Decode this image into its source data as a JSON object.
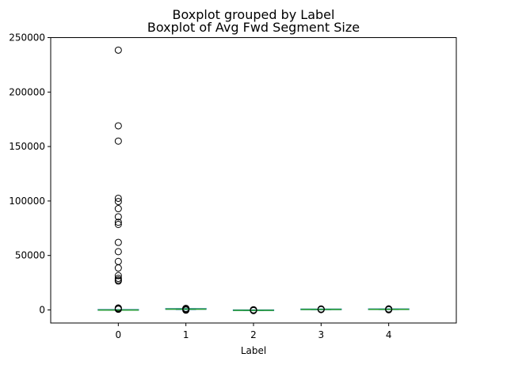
{
  "chart_data": {
    "type": "box",
    "suptitle": "Boxplot grouped by Label",
    "title": "Boxplot of Avg Fwd Segment Size",
    "xlabel": "Label",
    "ylabel": "",
    "categories": [
      "0",
      "1",
      "2",
      "3",
      "4"
    ],
    "ylim": [
      -12000,
      250000
    ],
    "yticks": [
      0,
      50000,
      100000,
      150000,
      200000,
      250000
    ],
    "ytick_labels": [
      "0",
      "50000",
      "100000",
      "150000",
      "200000",
      "250000"
    ],
    "grid": false,
    "legend": "none",
    "box_color": "#1f77b4",
    "median_color": "#2ca02c",
    "outlier_color": "#000000",
    "boxes": [
      {
        "category": "0",
        "min": -400,
        "q1": -200,
        "median": -100,
        "q3": 50,
        "max": 300,
        "outliers": [
          238500,
          169000,
          155000,
          102500,
          99500,
          93000,
          85500,
          80500,
          78500,
          62000,
          53500,
          44500,
          38500,
          31500,
          29000,
          27500,
          26500,
          1800,
          1200,
          600
        ]
      },
      {
        "category": "1",
        "min": 300,
        "q1": 500,
        "median": 700,
        "q3": 900,
        "max": 1200,
        "outliers": [
          1400,
          1000,
          300,
          -200
        ]
      },
      {
        "category": "2",
        "min": -600,
        "q1": -500,
        "median": -350,
        "q3": -250,
        "max": -100,
        "outliers": [
          200,
          -200,
          -600
        ]
      },
      {
        "category": "3",
        "min": 200,
        "q1": 350,
        "median": 450,
        "q3": 550,
        "max": 700,
        "outliers": [
          900,
          600,
          300
        ]
      },
      {
        "category": "4",
        "min": 300,
        "q1": 450,
        "median": 550,
        "q3": 650,
        "max": 800,
        "outliers": [
          950,
          500,
          150
        ]
      }
    ]
  }
}
